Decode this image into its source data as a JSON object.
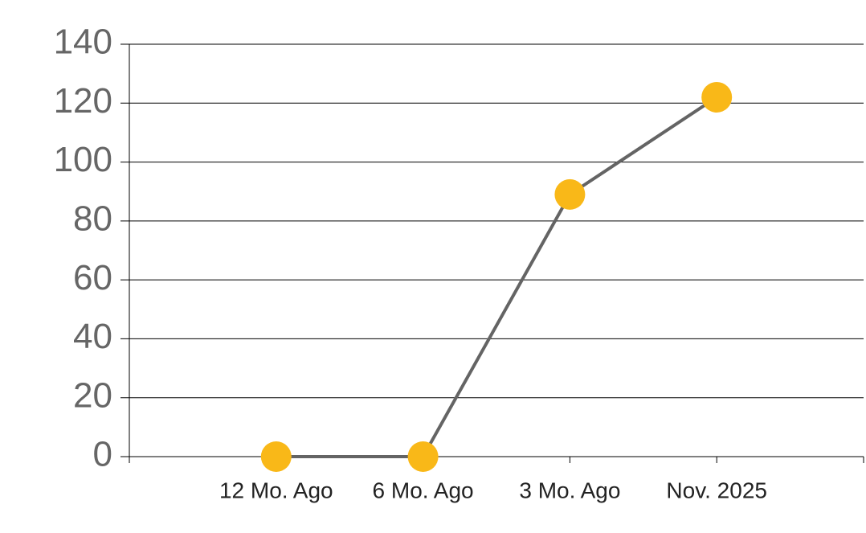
{
  "chart_data": {
    "type": "line",
    "categories": [
      null,
      "12 Mo. Ago",
      "6 Mo. Ago",
      "3 Mo. Ago",
      "Nov. 2025"
    ],
    "values": [
      null,
      0,
      0,
      89,
      122
    ],
    "line_color": "#646464",
    "marker_color": "#f9b818",
    "ylim": [
      0,
      140
    ],
    "yticks": [
      0,
      20,
      40,
      60,
      80,
      100,
      120,
      140
    ],
    "grid": true
  }
}
